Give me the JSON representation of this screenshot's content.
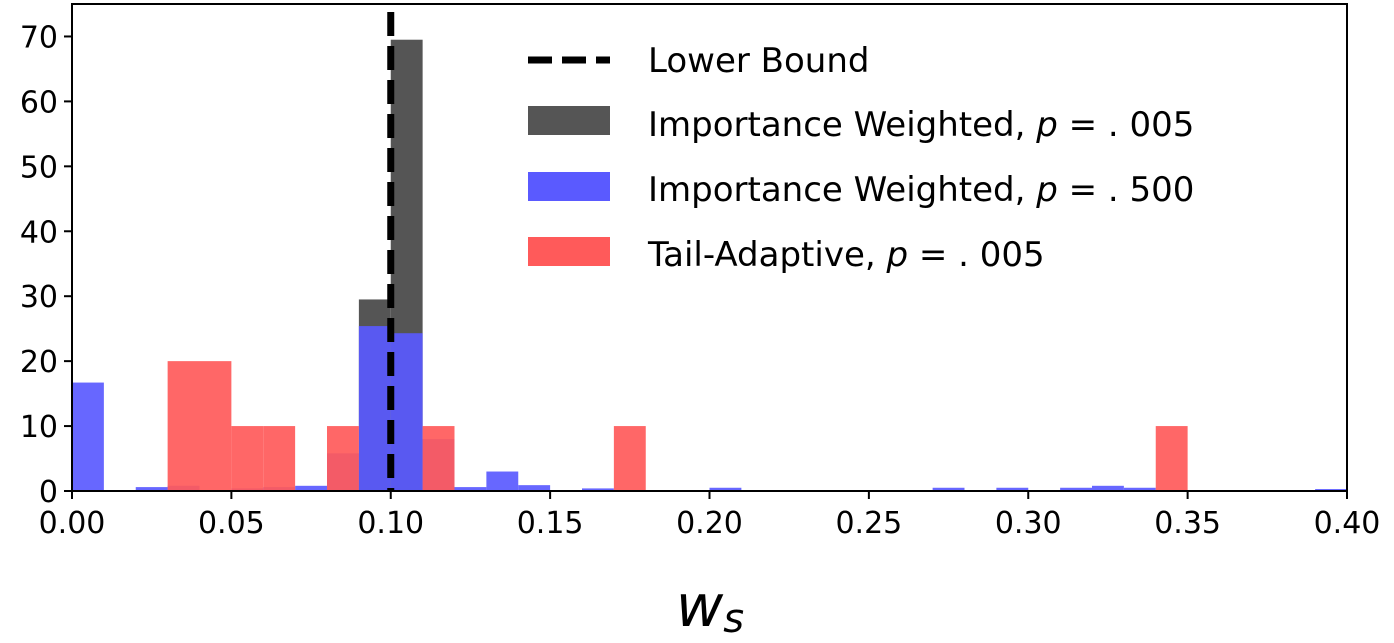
{
  "chart_data": {
    "type": "bar",
    "title": "",
    "xlabel": "w_s",
    "xlabel_main": "w",
    "xlabel_sub": "s",
    "ylabel": "",
    "xlim": [
      0.0,
      0.4
    ],
    "ylim": [
      0,
      75
    ],
    "bin_width": 0.01,
    "xticks": [
      0.0,
      0.05,
      0.1,
      0.15,
      0.2,
      0.25,
      0.3,
      0.35,
      0.4
    ],
    "xtick_labels": [
      "0.00",
      "0.05",
      "0.10",
      "0.15",
      "0.20",
      "0.25",
      "0.30",
      "0.35",
      "0.40"
    ],
    "yticks": [
      0,
      10,
      20,
      30,
      40,
      50,
      60,
      70
    ],
    "ytick_labels": [
      "0",
      "10",
      "20",
      "30",
      "40",
      "50",
      "60",
      "70"
    ],
    "grid": false,
    "legend_position": "top-right",
    "reference_line": {
      "name": "Lower Bound",
      "x": 0.1,
      "style": "dashed",
      "color": "#000000"
    },
    "series": [
      {
        "name": "Importance Weighted, p = .005",
        "legend_prefix": "Importance Weighted, ",
        "legend_var": "p",
        "legend_rest": " = . 005",
        "color": "#555555",
        "bins": [
          {
            "x": 0.09,
            "value": 29.5
          },
          {
            "x": 0.1,
            "value": 69.5
          }
        ]
      },
      {
        "name": "Importance Weighted, p = .500",
        "legend_prefix": "Importance Weighted, ",
        "legend_var": "p",
        "legend_rest": " = . 500",
        "color": "#5a5aff",
        "bins": [
          {
            "x": 0.0,
            "value": 16.7
          },
          {
            "x": 0.02,
            "value": 0.6
          },
          {
            "x": 0.03,
            "value": 0.8
          },
          {
            "x": 0.05,
            "value": 0.4
          },
          {
            "x": 0.06,
            "value": 0.6
          },
          {
            "x": 0.07,
            "value": 0.8
          },
          {
            "x": 0.08,
            "value": 5.8
          },
          {
            "x": 0.09,
            "value": 25.4
          },
          {
            "x": 0.1,
            "value": 24.3
          },
          {
            "x": 0.11,
            "value": 8.0
          },
          {
            "x": 0.12,
            "value": 0.6
          },
          {
            "x": 0.13,
            "value": 3.0
          },
          {
            "x": 0.14,
            "value": 0.9
          },
          {
            "x": 0.16,
            "value": 0.4
          },
          {
            "x": 0.2,
            "value": 0.5
          },
          {
            "x": 0.27,
            "value": 0.5
          },
          {
            "x": 0.29,
            "value": 0.5
          },
          {
            "x": 0.31,
            "value": 0.5
          },
          {
            "x": 0.32,
            "value": 0.8
          },
          {
            "x": 0.33,
            "value": 0.5
          },
          {
            "x": 0.39,
            "value": 0.3
          }
        ]
      },
      {
        "name": "Tail-Adaptive, p = .005",
        "legend_prefix": "Tail-Adaptive, ",
        "legend_var": "p",
        "legend_rest": " = . 005",
        "color": "#ff5a5a",
        "bins": [
          {
            "x": 0.03,
            "value": 20
          },
          {
            "x": 0.04,
            "value": 20
          },
          {
            "x": 0.05,
            "value": 10
          },
          {
            "x": 0.06,
            "value": 10
          },
          {
            "x": 0.08,
            "value": 10
          },
          {
            "x": 0.11,
            "value": 10
          },
          {
            "x": 0.17,
            "value": 10
          },
          {
            "x": 0.34,
            "value": 10
          }
        ]
      }
    ]
  }
}
